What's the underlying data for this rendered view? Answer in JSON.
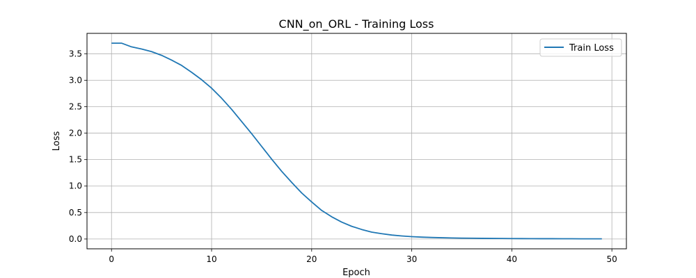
{
  "chart_data": {
    "type": "line",
    "title": "CNN_on_ORL - Training Loss",
    "xlabel": "Epoch",
    "ylabel": "Loss",
    "xlim": [
      -2.45,
      51.45
    ],
    "ylim": [
      -0.185,
      3.885
    ],
    "xticks": [
      0,
      10,
      20,
      30,
      40,
      50
    ],
    "yticks": [
      0.0,
      0.5,
      1.0,
      1.5,
      2.0,
      2.5,
      3.0,
      3.5
    ],
    "xtick_labels": [
      "0",
      "10",
      "20",
      "30",
      "40",
      "50"
    ],
    "ytick_labels": [
      "0.0",
      "0.5",
      "1.0",
      "1.5",
      "2.0",
      "2.5",
      "3.0",
      "3.5"
    ],
    "grid": true,
    "legend_position": "top-right",
    "series": [
      {
        "name": "Train Loss",
        "color": "#1f77b4",
        "x": [
          0,
          1,
          2,
          3,
          4,
          5,
          6,
          7,
          8,
          9,
          10,
          11,
          12,
          13,
          14,
          15,
          16,
          17,
          18,
          19,
          20,
          21,
          22,
          23,
          24,
          25,
          26,
          27,
          28,
          29,
          30,
          31,
          32,
          33,
          34,
          35,
          36,
          37,
          38,
          39,
          40,
          41,
          42,
          43,
          44,
          45,
          46,
          47,
          48,
          49
        ],
        "y": [
          3.7,
          3.7,
          3.63,
          3.59,
          3.54,
          3.47,
          3.38,
          3.28,
          3.15,
          3.01,
          2.85,
          2.66,
          2.45,
          2.22,
          1.99,
          1.75,
          1.51,
          1.28,
          1.07,
          0.87,
          0.7,
          0.54,
          0.42,
          0.32,
          0.24,
          0.18,
          0.13,
          0.1,
          0.075,
          0.058,
          0.045,
          0.036,
          0.029,
          0.024,
          0.02,
          0.017,
          0.015,
          0.013,
          0.011,
          0.01,
          0.009,
          0.008,
          0.007,
          0.006,
          0.006,
          0.005,
          0.005,
          0.004,
          0.004,
          0.004
        ]
      }
    ]
  }
}
